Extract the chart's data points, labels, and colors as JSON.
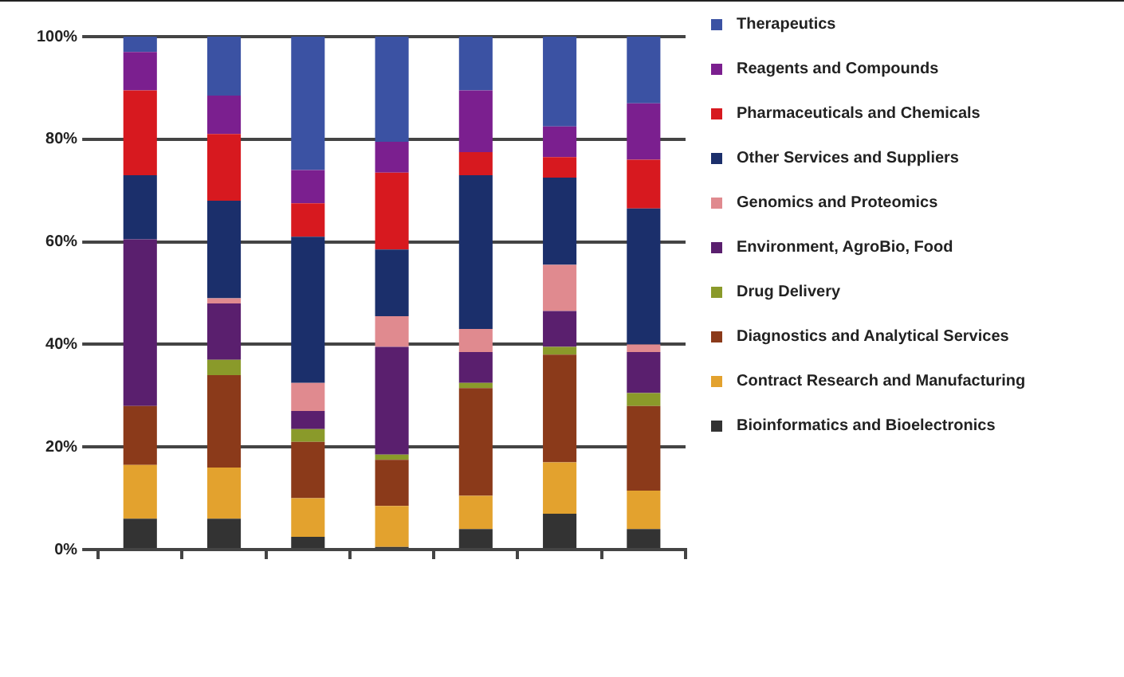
{
  "chart_data": {
    "type": "bar",
    "stacked": true,
    "categories": [
      null,
      null,
      null,
      null,
      null,
      null,
      null
    ],
    "ylim": [
      0,
      100
    ],
    "yticks": [
      {
        "value": 0,
        "label": "0%"
      },
      {
        "value": 20,
        "label": "20%"
      },
      {
        "value": 40,
        "label": "40%"
      },
      {
        "value": 60,
        "label": "60%"
      },
      {
        "value": 80,
        "label": "80%"
      },
      {
        "value": 100,
        "label": "100%"
      }
    ],
    "grid": "y",
    "legend": "right",
    "tick_labels": "y",
    "series": [
      {
        "name": "Bioinformatics and Bioelectronics",
        "color": "#333333",
        "values": [
          6,
          6,
          2.5,
          0.5,
          4,
          7,
          4
        ]
      },
      {
        "name": "Contract Research and Manufacturing",
        "color": "#e3a22e",
        "values": [
          10.5,
          10,
          7.5,
          8,
          6.5,
          10,
          7.5
        ]
      },
      {
        "name": "Diagnostics and Analytical Services",
        "color": "#8b3a1a",
        "values": [
          11.5,
          18,
          11,
          9,
          21,
          21,
          16.5
        ]
      },
      {
        "name": "Drug Delivery",
        "color": "#8a9a2a",
        "values": [
          0,
          3,
          2.5,
          1,
          1,
          1.5,
          2.5
        ]
      },
      {
        "name": "Environment, AgroBio, Food",
        "color": "#5a1f6e",
        "values": [
          32.5,
          11,
          3.5,
          21,
          6,
          7,
          8
        ]
      },
      {
        "name": "Genomics and Proteomics",
        "color": "#e08a8f",
        "values": [
          0,
          1,
          5.5,
          6,
          4.5,
          9,
          1.5
        ]
      },
      {
        "name": "Other Services and Suppliers",
        "color": "#1b2f6b",
        "values": [
          12.5,
          19,
          28.5,
          13,
          30,
          17,
          26.5
        ]
      },
      {
        "name": "Pharmaceuticals and Chemicals",
        "color": "#d7191f",
        "values": [
          16.5,
          13,
          6.5,
          15,
          4.5,
          4,
          9.5
        ]
      },
      {
        "name": "Reagents and Compounds",
        "color": "#7b1f8f",
        "values": [
          7.5,
          7.5,
          6.5,
          6,
          12,
          6,
          11
        ]
      },
      {
        "name": "Therapeutics",
        "color": "#3b52a3",
        "values": [
          3,
          11.5,
          26,
          20.5,
          10.5,
          17.5,
          13
        ]
      }
    ]
  }
}
